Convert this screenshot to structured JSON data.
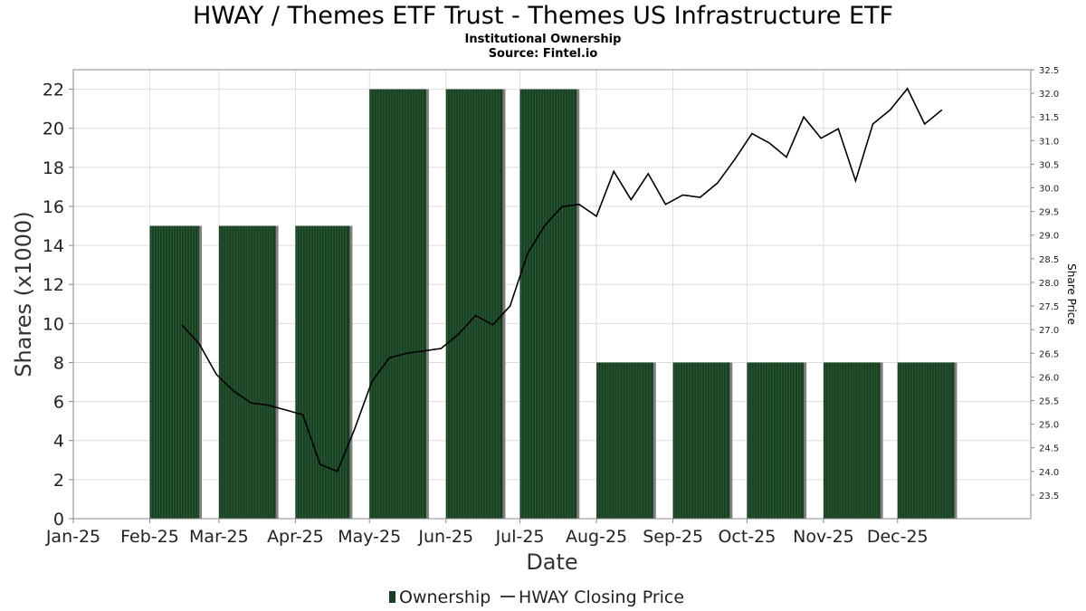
{
  "chart_data": {
    "type": "bar",
    "title": "HWAY / Themes ETF Trust - Themes US Infrastructure ETF",
    "subtitle": "Institutional Ownership",
    "source": "Source: Fintel.io",
    "xlabel": "Date",
    "ylabel": "Shares (x1000)",
    "y2label": "Share Price",
    "categories": [
      "Jan-25",
      "Feb-25",
      "Mar-25",
      "Apr-25",
      "May-25",
      "Jun-25",
      "Jul-25",
      "Aug-25",
      "Sep-25",
      "Oct-25",
      "Nov-25",
      "Dec-25"
    ],
    "ylim": [
      0,
      23
    ],
    "yticks": [
      0,
      2,
      4,
      6,
      8,
      10,
      12,
      14,
      16,
      18,
      20,
      22
    ],
    "y2lim": [
      23.0,
      32.5
    ],
    "y2ticks": [
      "23.5",
      "24.0",
      "24.5",
      "25.0",
      "25.5",
      "26.0",
      "26.5",
      "27.0",
      "27.5",
      "28.0",
      "28.5",
      "29.0",
      "29.5",
      "30.0",
      "30.5",
      "31.0",
      "31.5",
      "32.0",
      "32.5"
    ],
    "grid": true,
    "legend_position": "bottom",
    "series": [
      {
        "name": "Ownership",
        "type": "bar",
        "axis": "left",
        "color": "#1a4023",
        "bars": [
          {
            "start": "2025-02-01",
            "end": "2025-02-21",
            "value": 15
          },
          {
            "start": "2025-03-01",
            "end": "2025-03-24",
            "value": 15
          },
          {
            "start": "2025-04-01",
            "end": "2025-04-23",
            "value": 15
          },
          {
            "start": "2025-05-01",
            "end": "2025-05-24",
            "value": 22
          },
          {
            "start": "2025-06-01",
            "end": "2025-06-24",
            "value": 22
          },
          {
            "start": "2025-07-01",
            "end": "2025-07-24",
            "value": 22
          },
          {
            "start": "2025-08-01",
            "end": "2025-08-24",
            "value": 8
          },
          {
            "start": "2025-09-01",
            "end": "2025-09-24",
            "value": 8
          },
          {
            "start": "2025-10-01",
            "end": "2025-10-24",
            "value": 8
          },
          {
            "start": "2025-11-01",
            "end": "2025-11-24",
            "value": 8
          },
          {
            "start": "2025-12-01",
            "end": "2025-12-24",
            "value": 8
          }
        ]
      },
      {
        "name": "HWAY Closing Price",
        "type": "line",
        "axis": "right",
        "color": "#000000",
        "points": [
          [
            "2025-02-14",
            27.1
          ],
          [
            "2025-02-21",
            26.7
          ],
          [
            "2025-02-28",
            26.05
          ],
          [
            "2025-03-07",
            25.7
          ],
          [
            "2025-03-14",
            25.45
          ],
          [
            "2025-03-21",
            25.4
          ],
          [
            "2025-03-28",
            25.3
          ],
          [
            "2025-04-04",
            25.2
          ],
          [
            "2025-04-11",
            24.15
          ],
          [
            "2025-04-18",
            24.0
          ],
          [
            "2025-04-25",
            24.9
          ],
          [
            "2025-05-02",
            25.9
          ],
          [
            "2025-05-09",
            26.4
          ],
          [
            "2025-05-16",
            26.5
          ],
          [
            "2025-05-23",
            26.55
          ],
          [
            "2025-05-30",
            26.6
          ],
          [
            "2025-06-06",
            26.9
          ],
          [
            "2025-06-13",
            27.3
          ],
          [
            "2025-06-20",
            27.1
          ],
          [
            "2025-06-27",
            27.5
          ],
          [
            "2025-07-04",
            28.6
          ],
          [
            "2025-07-11",
            29.2
          ],
          [
            "2025-07-18",
            29.6
          ],
          [
            "2025-07-25",
            29.65
          ],
          [
            "2025-08-01",
            29.4
          ],
          [
            "2025-08-08",
            30.35
          ],
          [
            "2025-08-15",
            29.75
          ],
          [
            "2025-08-22",
            30.3
          ],
          [
            "2025-08-29",
            29.65
          ],
          [
            "2025-09-05",
            29.85
          ],
          [
            "2025-09-12",
            29.8
          ],
          [
            "2025-09-19",
            30.1
          ],
          [
            "2025-09-26",
            30.6
          ],
          [
            "2025-10-03",
            31.15
          ],
          [
            "2025-10-10",
            30.95
          ],
          [
            "2025-10-17",
            30.65
          ],
          [
            "2025-10-24",
            31.5
          ],
          [
            "2025-10-31",
            31.05
          ],
          [
            "2025-11-07",
            31.25
          ],
          [
            "2025-11-14",
            30.15
          ],
          [
            "2025-11-21",
            31.35
          ],
          [
            "2025-11-28",
            31.65
          ],
          [
            "2025-12-05",
            32.1
          ],
          [
            "2025-12-12",
            31.35
          ],
          [
            "2025-12-19",
            31.65
          ]
        ]
      }
    ]
  }
}
